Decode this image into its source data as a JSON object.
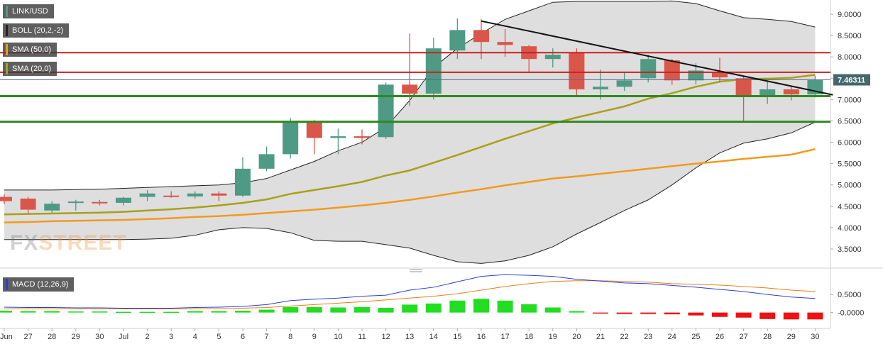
{
  "chart_data": {
    "type": "candlestick",
    "symbol": "LINK/USD",
    "x_tick_labels": [
      "Jun",
      "27",
      "28",
      "29",
      "30",
      "Jul",
      "2",
      "3",
      "4",
      "5",
      "6",
      "7",
      "8",
      "9",
      "10",
      "11",
      "12",
      "13",
      "14",
      "15",
      "16",
      "17",
      "18",
      "19",
      "20",
      "21",
      "22",
      "23",
      "24",
      "25",
      "26",
      "27",
      "28",
      "29",
      "30"
    ],
    "y_ticks": [
      "9.0000",
      "8.5000",
      "8.0000",
      "7.5000",
      "7.0000",
      "6.5000",
      "6.0000",
      "5.5000",
      "5.0000",
      "4.5000",
      "4.0000",
      "3.5000"
    ],
    "ylim": [
      3.1,
      9.3
    ],
    "last_price": "7.46311",
    "candles": [
      {
        "x": "26",
        "o": 4.72,
        "h": 4.78,
        "l": 4.55,
        "c": 4.62
      },
      {
        "x": "27",
        "o": 4.68,
        "h": 4.72,
        "l": 4.32,
        "c": 4.42
      },
      {
        "x": "28",
        "o": 4.4,
        "h": 4.62,
        "l": 4.35,
        "c": 4.56
      },
      {
        "x": "29",
        "o": 4.58,
        "h": 4.65,
        "l": 4.4,
        "c": 4.61
      },
      {
        "x": "30",
        "o": 4.6,
        "h": 4.65,
        "l": 4.52,
        "c": 4.58
      },
      {
        "x": "Jul",
        "o": 4.58,
        "h": 4.72,
        "l": 4.52,
        "c": 4.7
      },
      {
        "x": "2",
        "o": 4.72,
        "h": 4.88,
        "l": 4.62,
        "c": 4.8
      },
      {
        "x": "3",
        "o": 4.75,
        "h": 4.85,
        "l": 4.7,
        "c": 4.72
      },
      {
        "x": "4",
        "o": 4.73,
        "h": 4.85,
        "l": 4.68,
        "c": 4.8
      },
      {
        "x": "5",
        "o": 4.8,
        "h": 4.85,
        "l": 4.62,
        "c": 4.75
      },
      {
        "x": "6",
        "o": 4.75,
        "h": 5.65,
        "l": 4.72,
        "c": 5.38
      },
      {
        "x": "7",
        "o": 5.38,
        "h": 5.9,
        "l": 5.32,
        "c": 5.72
      },
      {
        "x": "8",
        "o": 5.72,
        "h": 6.57,
        "l": 5.62,
        "c": 6.48
      },
      {
        "x": "9",
        "o": 6.48,
        "h": 6.52,
        "l": 5.72,
        "c": 6.1
      },
      {
        "x": "10",
        "o": 6.1,
        "h": 6.32,
        "l": 5.72,
        "c": 6.14
      },
      {
        "x": "11",
        "o": 6.14,
        "h": 6.3,
        "l": 5.95,
        "c": 6.1
      },
      {
        "x": "12",
        "o": 6.12,
        "h": 7.4,
        "l": 6.08,
        "c": 7.35
      },
      {
        "x": "13",
        "o": 7.35,
        "h": 8.55,
        "l": 6.85,
        "c": 7.14
      },
      {
        "x": "14",
        "o": 7.14,
        "h": 8.45,
        "l": 7.0,
        "c": 8.2
      },
      {
        "x": "15",
        "o": 8.15,
        "h": 8.9,
        "l": 7.95,
        "c": 8.63
      },
      {
        "x": "16",
        "o": 8.63,
        "h": 8.88,
        "l": 7.95,
        "c": 8.35
      },
      {
        "x": "17",
        "o": 8.35,
        "h": 8.65,
        "l": 8.0,
        "c": 8.28
      },
      {
        "x": "18",
        "o": 8.25,
        "h": 8.28,
        "l": 7.65,
        "c": 7.95
      },
      {
        "x": "19",
        "o": 7.95,
        "h": 8.2,
        "l": 7.75,
        "c": 8.05
      },
      {
        "x": "20",
        "o": 8.1,
        "h": 8.2,
        "l": 7.1,
        "c": 7.24
      },
      {
        "x": "21",
        "o": 7.24,
        "h": 7.7,
        "l": 7.0,
        "c": 7.3
      },
      {
        "x": "22",
        "o": 7.3,
        "h": 7.65,
        "l": 7.2,
        "c": 7.45
      },
      {
        "x": "23",
        "o": 7.5,
        "h": 8.05,
        "l": 7.4,
        "c": 7.95
      },
      {
        "x": "24",
        "o": 7.92,
        "h": 7.95,
        "l": 7.35,
        "c": 7.45
      },
      {
        "x": "25",
        "o": 7.45,
        "h": 7.85,
        "l": 7.35,
        "c": 7.68
      },
      {
        "x": "26",
        "o": 7.65,
        "h": 7.98,
        "l": 7.4,
        "c": 7.52
      },
      {
        "x": "27",
        "o": 7.5,
        "h": 7.55,
        "l": 6.5,
        "c": 7.1
      },
      {
        "x": "28",
        "o": 7.1,
        "h": 7.45,
        "l": 6.9,
        "c": 7.24
      },
      {
        "x": "29",
        "o": 7.24,
        "h": 7.3,
        "l": 6.98,
        "c": 7.12
      },
      {
        "x": "30",
        "o": 7.12,
        "h": 7.56,
        "l": 7.05,
        "c": 7.46
      }
    ],
    "boll_upper": [
      4.88,
      4.88,
      4.88,
      4.89,
      4.9,
      4.92,
      4.94,
      4.96,
      4.98,
      5.0,
      5.05,
      5.15,
      5.35,
      5.55,
      5.8,
      6.0,
      6.35,
      6.98,
      7.75,
      8.2,
      8.55,
      8.88,
      9.08,
      9.28,
      9.3,
      9.3,
      9.3,
      9.3,
      9.31,
      9.25,
      9.08,
      8.92,
      8.88,
      8.83,
      8.7
    ],
    "boll_lower": [
      3.72,
      3.72,
      3.72,
      3.72,
      3.72,
      3.72,
      3.73,
      3.75,
      3.82,
      3.95,
      4.0,
      3.98,
      3.88,
      3.7,
      3.68,
      3.68,
      3.6,
      3.52,
      3.35,
      3.2,
      3.16,
      3.22,
      3.35,
      3.55,
      3.85,
      4.12,
      4.4,
      4.65,
      5.0,
      5.4,
      5.75,
      5.98,
      6.08,
      6.22,
      6.47
    ],
    "boll_middle": [
      4.31,
      4.32,
      4.33,
      4.34,
      4.35,
      4.37,
      4.4,
      4.43,
      4.47,
      4.52,
      4.58,
      4.66,
      4.79,
      4.88,
      4.97,
      5.07,
      5.22,
      5.34,
      5.52,
      5.7,
      5.89,
      6.08,
      6.26,
      6.44,
      6.58,
      6.71,
      6.84,
      7.02,
      7.15,
      7.3,
      7.42,
      7.48,
      7.49,
      7.51,
      7.58
    ],
    "sma_50": [
      4.12,
      4.13,
      4.15,
      4.16,
      4.17,
      4.18,
      4.2,
      4.22,
      4.25,
      4.27,
      4.3,
      4.34,
      4.38,
      4.42,
      4.47,
      4.52,
      4.58,
      4.65,
      4.73,
      4.82,
      4.9,
      4.99,
      5.07,
      5.15,
      5.2,
      5.26,
      5.32,
      5.38,
      5.44,
      5.5,
      5.55,
      5.61,
      5.66,
      5.71,
      5.84
    ],
    "resistance_levels": [
      8.1,
      7.64
    ],
    "support_levels": [
      7.08,
      6.48
    ],
    "trendline": {
      "from_x": "16",
      "from_y": 8.84,
      "to_x": "30",
      "to_y": 7.15
    },
    "macd": {
      "label": "MACD (12,26,9)",
      "y_ticks": [
        "0.5000",
        "-0.0000"
      ],
      "ylim": [
        -0.4,
        1.15
      ],
      "macd_line": [
        0.15,
        0.14,
        0.14,
        0.13,
        0.13,
        0.12,
        0.12,
        0.12,
        0.14,
        0.15,
        0.17,
        0.22,
        0.33,
        0.37,
        0.4,
        0.45,
        0.48,
        0.62,
        0.7,
        0.85,
        1.0,
        1.05,
        1.03,
        1.0,
        0.92,
        0.87,
        0.82,
        0.8,
        0.75,
        0.7,
        0.64,
        0.58,
        0.5,
        0.43,
        0.39
      ],
      "signal_line": [
        0.1,
        0.1,
        0.1,
        0.1,
        0.1,
        0.1,
        0.1,
        0.1,
        0.1,
        0.11,
        0.12,
        0.14,
        0.18,
        0.22,
        0.26,
        0.3,
        0.35,
        0.4,
        0.45,
        0.52,
        0.62,
        0.72,
        0.8,
        0.86,
        0.88,
        0.88,
        0.86,
        0.84,
        0.8,
        0.78,
        0.76,
        0.72,
        0.68,
        0.62,
        0.58
      ],
      "histogram": [
        0.05,
        0.04,
        0.04,
        0.03,
        0.03,
        0.02,
        0.02,
        0.02,
        0.04,
        0.04,
        0.05,
        0.08,
        0.15,
        0.15,
        0.14,
        0.15,
        0.13,
        0.22,
        0.25,
        0.33,
        0.38,
        0.33,
        0.23,
        0.14,
        0.04,
        -0.01,
        -0.04,
        -0.04,
        -0.05,
        -0.08,
        -0.12,
        -0.14,
        -0.18,
        -0.19,
        -0.19
      ]
    }
  },
  "legends": {
    "pair": "LINK/USD",
    "boll": "BOLL (20,2,-2)",
    "sma50": "SMA (50,0)",
    "sma20": "SMA (20,0)"
  },
  "brand": {
    "a": "FX",
    "b": "STREET"
  },
  "colors": {
    "up": "#4f9a84",
    "down": "#d9574a",
    "band_fill": "#d8d8d8",
    "band_line": "#222222",
    "sma20": "#a8a018",
    "sma50": "#f39a1c",
    "resistance": "#cc1f1f",
    "support": "#2f8a1e",
    "trendline": "#111111",
    "price_tag": "#44686b",
    "macd_line": "#2a3ed6",
    "signal_line": "#f07a1a",
    "hist_up": "#22dd22",
    "hist_down": "#ee1111"
  }
}
